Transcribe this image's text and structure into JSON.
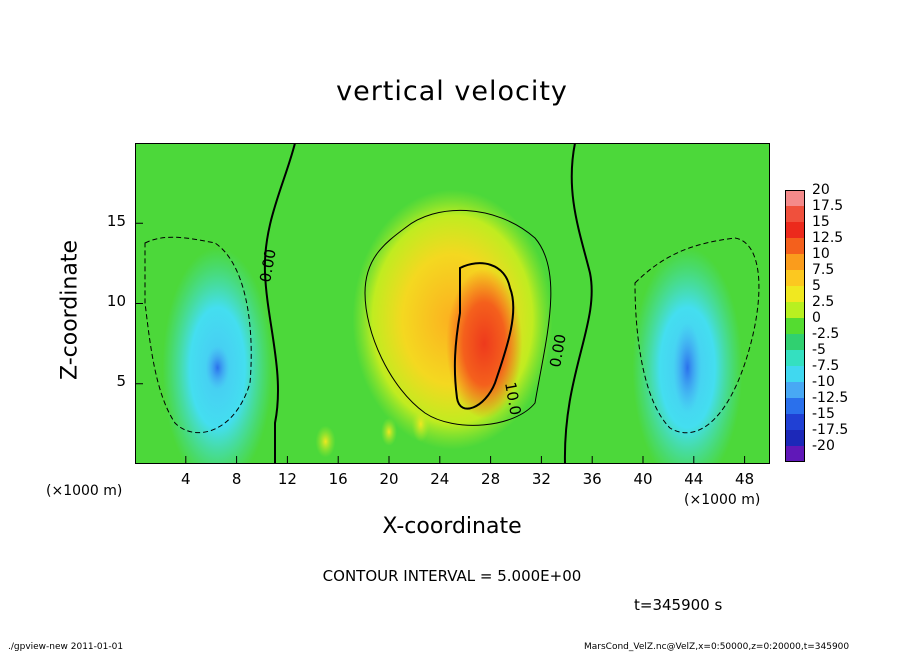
{
  "chart_data": {
    "type": "heatmap",
    "title": "vertical velocity",
    "xlabel": "X-coordinate",
    "ylabel": "Z-coordinate",
    "x_unit_left": "(×1000 m)",
    "x_unit_right": "(×1000 m)",
    "xlim": [
      0,
      50
    ],
    "ylim": [
      0,
      20
    ],
    "xticks": [
      "4",
      "8",
      "12",
      "16",
      "20",
      "24",
      "28",
      "32",
      "36",
      "40",
      "44",
      "48"
    ],
    "yticks": [
      "5",
      "10",
      "15"
    ],
    "contour_labels": [
      "0.00",
      "10.0",
      "0.00"
    ],
    "colorbar": {
      "labels": [
        "20",
        "17.5",
        "15",
        "12.5",
        "10",
        "7.5",
        "5",
        "2.5",
        "0",
        "-2.5",
        "-5",
        "-7.5",
        "-10",
        "-12.5",
        "-15",
        "-17.5",
        "-20"
      ],
      "colors": [
        "#f48a8a",
        "#f0503c",
        "#ec2a1c",
        "#f4601c",
        "#fa9c1c",
        "#fcc820",
        "#f0e820",
        "#b8f020",
        "#54dc30",
        "#30d070",
        "#34e0c0",
        "#40d8f0",
        "#48a8f4",
        "#2a70ec",
        "#2040d4",
        "#1c28b8",
        "#6018b8"
      ]
    },
    "field_features": [
      {
        "name": "updraft core",
        "x": 27.5,
        "z": 7.5,
        "value": 15
      },
      {
        "name": "updraft halo",
        "x": 25,
        "z": 9,
        "value": 7
      },
      {
        "name": "downdraft left",
        "x": 6.5,
        "z": 6,
        "value": -7
      },
      {
        "name": "downdraft right",
        "x": 43.5,
        "z": 6,
        "value": -9
      }
    ],
    "contour_interval": "CONTOUR INTERVAL = 5.000E+00"
  },
  "time_label": "t=345900 s",
  "footer_left": "./gpview-new  2011-01-01",
  "footer_right": "MarsCond_VelZ.nc@VelZ,x=0:50000,z=0:20000,t=345900"
}
